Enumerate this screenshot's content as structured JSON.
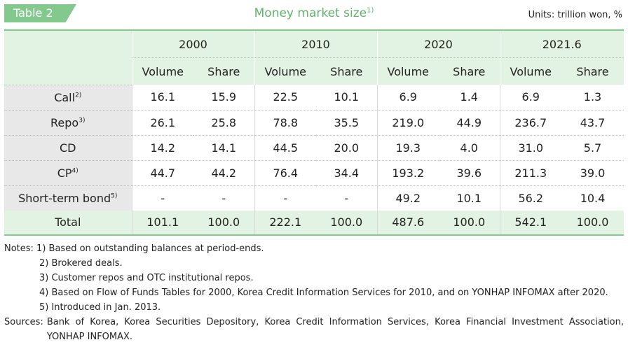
{
  "header": {
    "tag": "Table 2",
    "title": "Money market size",
    "title_sup": "1)",
    "units": "Units: trillion won, %"
  },
  "table": {
    "years": [
      "2000",
      "2010",
      "2020",
      "2021.6"
    ],
    "subheaders": [
      "Volume",
      "Share",
      "Volume",
      "Share",
      "Volume",
      "Share",
      "Volume",
      "Share"
    ],
    "rows": [
      {
        "label": "Call",
        "sup": "2)",
        "values": [
          "16.1",
          "15.9",
          "22.5",
          "10.1",
          "6.9",
          "1.4",
          "6.9",
          "1.3"
        ]
      },
      {
        "label": "Repo",
        "sup": "3)",
        "values": [
          "26.1",
          "25.8",
          "78.8",
          "35.5",
          "219.0",
          "44.9",
          "236.7",
          "43.7"
        ]
      },
      {
        "label": "CD",
        "sup": "",
        "values": [
          "14.2",
          "14.1",
          "44.5",
          "20.0",
          "19.3",
          "4.0",
          "31.0",
          "5.7"
        ]
      },
      {
        "label": "CP",
        "sup": "4)",
        "values": [
          "44.7",
          "44.2",
          "76.4",
          "34.4",
          "193.2",
          "39.6",
          "211.3",
          "39.0"
        ]
      },
      {
        "label": "Short-term bond",
        "sup": "5)",
        "values": [
          "-",
          "-",
          "-",
          "-",
          "49.2",
          "10.1",
          "56.2",
          "10.4"
        ]
      },
      {
        "label": "Total",
        "sup": "",
        "values": [
          "101.1",
          "100.0",
          "222.1",
          "100.0",
          "487.6",
          "100.0",
          "542.1",
          "100.0"
        ]
      }
    ]
  },
  "notes": {
    "first": "Notes: 1) Based on outstanding balances at period-ends.",
    "items": [
      "2) Brokered deals.",
      "3) Customer repos and OTC institutional repos.",
      "4) Based on Flow of Funds Tables for 2000, Korea Credit Information Services for 2010, and on YONHAP INFOMAX after 2020.",
      "5) Introduced in Jan. 2013."
    ],
    "sources_label": "Sources:",
    "sources_text": "Bank of Korea, Korea Securities Depository, Korea Credit Information Services, Korea Financial Investment Association, YONHAP INFOMAX."
  }
}
